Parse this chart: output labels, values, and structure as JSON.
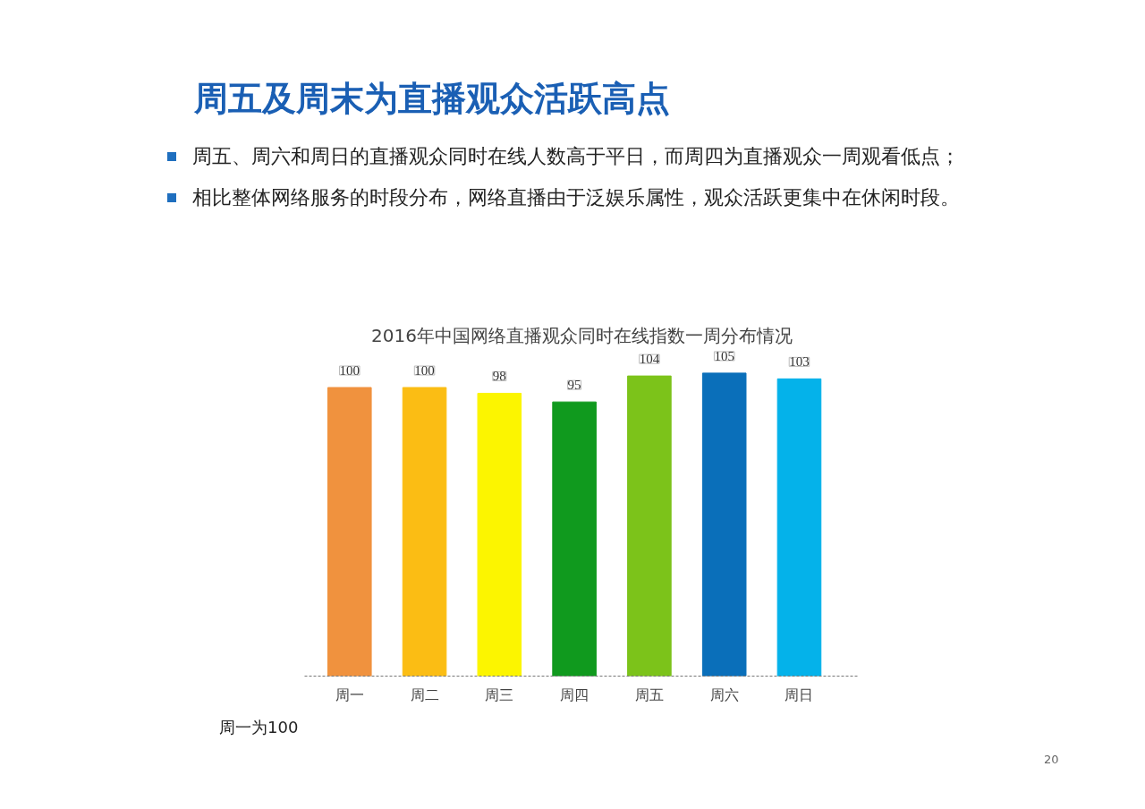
{
  "chart_data": {
    "type": "bar",
    "title": "周五及周末为直播观众活跃高点",
    "subtitle": "2016年中国网络直播观众同时在线指数一周分布情况",
    "annotations": [
      "周五、周六和周日的直播观众同时在线人数高于平日，而周四为直播观众一周观看低点；",
      "相比整体网络服务的时段分布，网络直播由于泛娱乐属性，观众活跃更集中在休闲时段。",
      "周一为100",
      "20"
    ],
    "categories": [
      "周一",
      "周二",
      "周三",
      "周四",
      "周五",
      "周六",
      "周日"
    ],
    "values": [
      100,
      100,
      98,
      95,
      104,
      105,
      103
    ],
    "colors": [
      "#f0923e",
      "#fbbd14",
      "#fcf500",
      "#109a1e",
      "#7cc31a",
      "#0a6fba",
      "#04b2ea"
    ],
    "tick_labels": "x",
    "grid": false,
    "data_labels": true
  }
}
